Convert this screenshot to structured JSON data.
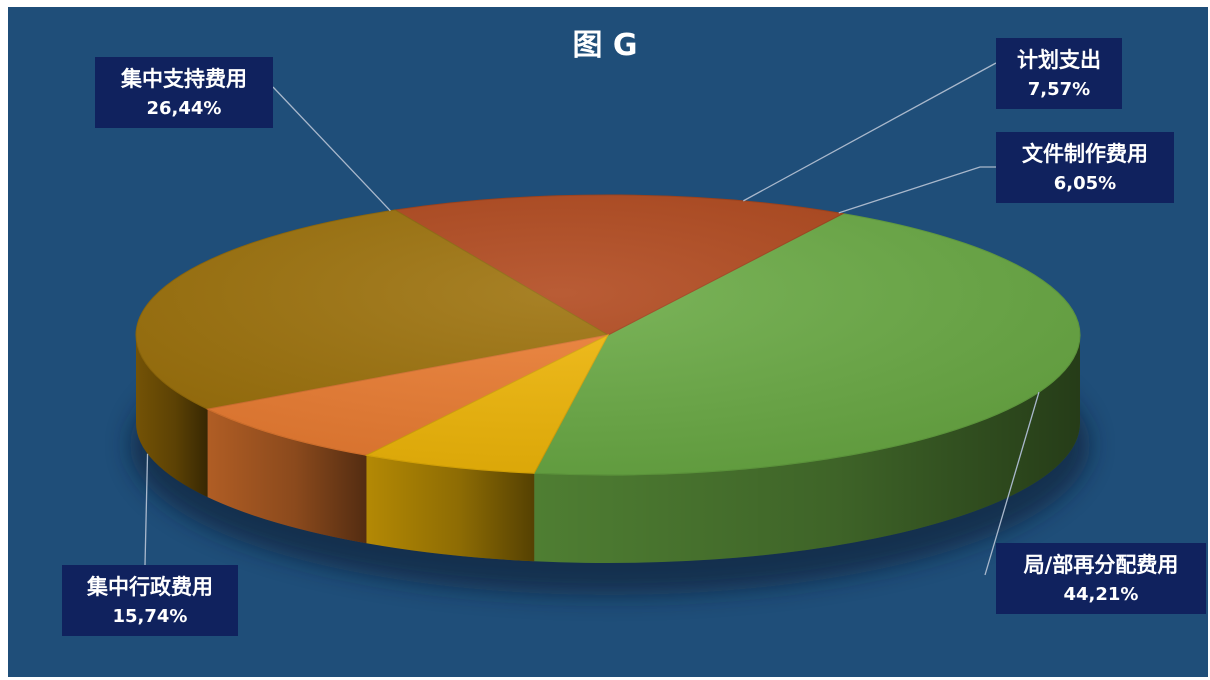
{
  "chart_data": {
    "type": "pie",
    "title": "图 G",
    "slices": [
      {
        "label": "局/部再分配费用",
        "value": 44.21,
        "value_text": "44,21%",
        "color": "#6aab44"
      },
      {
        "label": "集中行政费用",
        "value": 15.74,
        "value_text": "15,74%",
        "color": "#b0461a"
      },
      {
        "label": "集中支持费用",
        "value": 26.44,
        "value_text": "26,44%",
        "color": "#9c7008"
      },
      {
        "label": "计划支出",
        "value": 7.57,
        "value_text": "7,57%",
        "color": "#ed7d31"
      },
      {
        "label": "文件制作费用",
        "value": 6.05,
        "value_text": "6,05%",
        "color": "#f2b807"
      }
    ],
    "legend": "none",
    "data_labels": "callout"
  }
}
